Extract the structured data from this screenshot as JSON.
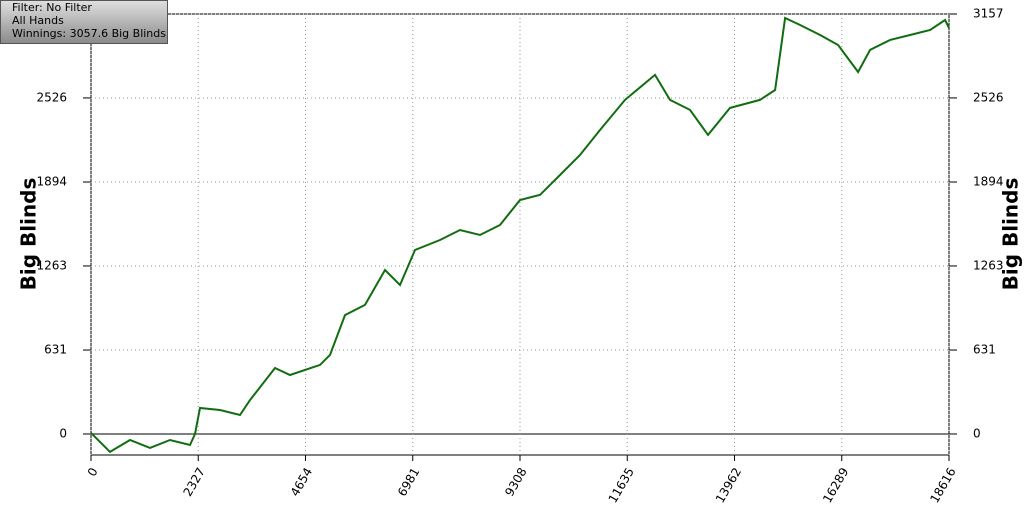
{
  "chart_data": {
    "type": "line",
    "annotations": [
      "Filter: No Filter",
      "All Hands",
      "Winnings: 3057.6 Big Blinds"
    ],
    "ylabel": "Big Blinds",
    "x": [
      0,
      412,
      846,
      1280,
      1714,
      2148,
      2257,
      2365,
      2799,
      3233,
      3450,
      3992,
      4318,
      4969,
      5186,
      5511,
      5945,
      6379,
      6705,
      7030,
      7572,
      8006,
      8440,
      8874,
      9308,
      9742,
      10176,
      10610,
      11044,
      11586,
      12237,
      12563,
      12997,
      13388,
      13865,
      14516,
      14842,
      15059,
      15385,
      15819,
      16210,
      16644,
      16904,
      17338,
      17772,
      18206,
      18531,
      18616
    ],
    "values": [
      8,
      -135,
      -45,
      -105,
      -45,
      -83,
      0,
      195,
      180,
      143,
      255,
      496,
      443,
      519,
      594,
      894,
      970,
      1233,
      1120,
      1383,
      1458,
      1533,
      1496,
      1571,
      1759,
      1797,
      1947,
      2097,
      2285,
      2511,
      2699,
      2511,
      2436,
      2248,
      2451,
      2511,
      2586,
      3127,
      3074,
      2999,
      2924,
      2721,
      2887,
      2962,
      2999,
      3037,
      3112,
      3052
    ],
    "color": "#116d11",
    "xlim": [
      0,
      18616
    ],
    "xticks": [
      0,
      2327,
      4654,
      6981,
      9308,
      11635,
      13962,
      16289,
      18616
    ],
    "ylim": [
      -158,
      3157
    ],
    "yticks": [
      0,
      631,
      1263,
      1894,
      2526,
      3157
    ],
    "grid": true
  }
}
